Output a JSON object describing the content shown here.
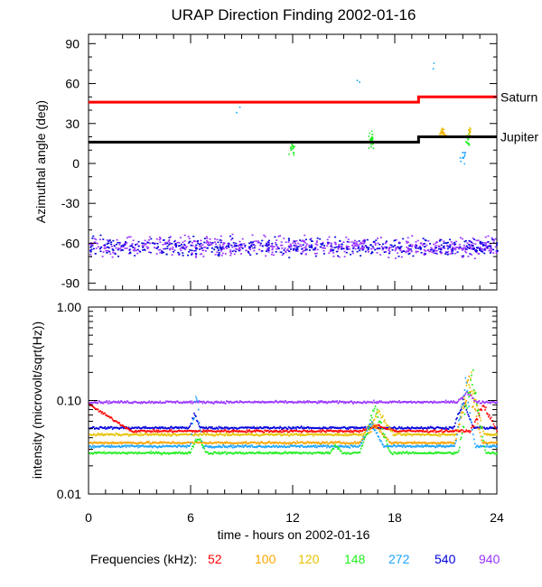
{
  "title": "URAP Direction Finding  2002-01-16",
  "colors": {
    "f52": "#ff0000",
    "f100": "#ffa500",
    "f120": "#e6c200",
    "f148": "#22ee22",
    "f272": "#1aa3ff",
    "f540": "#0000dd",
    "f940": "#9933ff",
    "saturn": "#ff0000",
    "jupiter": "#000000"
  },
  "legend": {
    "label": "Frequencies (kHz):",
    "items": [
      {
        "text": "52",
        "color": "#ff0000"
      },
      {
        "text": "100",
        "color": "#ffa500"
      },
      {
        "text": "120",
        "color": "#e6c200"
      },
      {
        "text": "148",
        "color": "#22ee22"
      },
      {
        "text": "272",
        "color": "#1aa3ff"
      },
      {
        "text": "540",
        "color": "#0000dd"
      },
      {
        "text": "940",
        "color": "#9933ff"
      }
    ]
  },
  "chart_data": [
    {
      "type": "scatter",
      "title": "URAP Direction Finding  2002-01-16",
      "ylabel": "Azimuthal angle (deg)",
      "xlabel": "",
      "xlim": [
        0,
        24
      ],
      "ylim": [
        -95,
        97
      ],
      "x_ticks": [
        "0",
        "6",
        "12",
        "18",
        "24"
      ],
      "y_ticks": [
        "90",
        "60",
        "30",
        "0",
        "-30",
        "-60",
        "-90"
      ],
      "y_tick_values": [
        90,
        60,
        30,
        0,
        -30,
        -60,
        -90
      ],
      "reference_lines": [
        {
          "name": "Saturn",
          "segments": [
            [
              0,
              19.4,
              46
            ],
            [
              19.4,
              24,
              50
            ]
          ]
        },
        {
          "name": "Jupiter",
          "segments": [
            [
              0,
              19.4,
              16
            ],
            [
              19.4,
              24,
              20
            ]
          ]
        }
      ],
      "series": [
        {
          "name": "940",
          "band": {
            "center": -62,
            "spread": 10,
            "x_range": [
              0,
              24
            ]
          }
        },
        {
          "name": "540",
          "band": {
            "center": -62,
            "spread": 10,
            "x_range": [
              0,
              24
            ]
          }
        },
        {
          "name": "148",
          "clusters": [
            [
              11.9,
              12,
              18
            ],
            [
              16.6,
              18,
              30
            ],
            [
              22.3,
              17,
              15
            ]
          ]
        },
        {
          "name": "120",
          "clusters": [
            [
              20.7,
              23,
              15
            ],
            [
              22.4,
              25,
              12
            ]
          ]
        },
        {
          "name": "100",
          "clusters": [
            [
              20.8,
              22,
              12
            ]
          ]
        },
        {
          "name": "272",
          "clusters": [
            [
              22.0,
              5,
              12
            ],
            [
              8.8,
              40,
              2
            ],
            [
              15.9,
              62,
              2
            ],
            [
              20.4,
              76,
              2
            ]
          ]
        }
      ]
    },
    {
      "type": "line",
      "ylabel": "intensity (microvolt/sqrt(Hz))",
      "xlabel": "time - hours on 2002-01-16",
      "xlim": [
        0,
        24
      ],
      "ylim": [
        0.01,
        1.0
      ],
      "yscale": "log",
      "x_ticks": [
        "0",
        "6",
        "12",
        "18",
        "24"
      ],
      "y_ticks": [
        "1.00",
        "0.10",
        "0.01"
      ],
      "y_tick_values": [
        1.0,
        0.1,
        0.01
      ],
      "series": [
        {
          "name": "940",
          "baseline": 0.098,
          "bursts": [
            [
              22.2,
              0.13,
              0.6
            ]
          ]
        },
        {
          "name": "540",
          "baseline": 0.052,
          "bursts": [
            [
              6.2,
              0.08,
              0.3
            ],
            [
              22.0,
              0.11,
              0.6
            ]
          ]
        },
        {
          "name": "52",
          "baseline": 0.048,
          "start": 0.092,
          "decay_end": 2.5,
          "bursts": [
            [
              17.0,
              0.056,
              1.0
            ],
            [
              23.2,
              0.1,
              0.8
            ]
          ]
        },
        {
          "name": "120",
          "baseline": 0.044,
          "bursts": [
            [
              17.0,
              0.085,
              0.9
            ],
            [
              22.4,
              0.24,
              0.8
            ]
          ]
        },
        {
          "name": "100",
          "baseline": 0.036,
          "bursts": [
            [
              16.8,
              0.06,
              0.9
            ],
            [
              22.3,
              0.2,
              0.8
            ]
          ]
        },
        {
          "name": "272",
          "baseline": 0.033,
          "bursts": [
            [
              6.3,
              0.17,
              0.35
            ],
            [
              16.6,
              0.065,
              0.7
            ],
            [
              22.1,
              0.2,
              0.6
            ]
          ]
        },
        {
          "name": "148",
          "baseline": 0.028,
          "bursts": [
            [
              6.4,
              0.045,
              0.5
            ],
            [
              14.5,
              0.035,
              0.4
            ],
            [
              16.8,
              0.1,
              0.9
            ],
            [
              22.5,
              0.27,
              0.8
            ]
          ]
        }
      ]
    }
  ]
}
